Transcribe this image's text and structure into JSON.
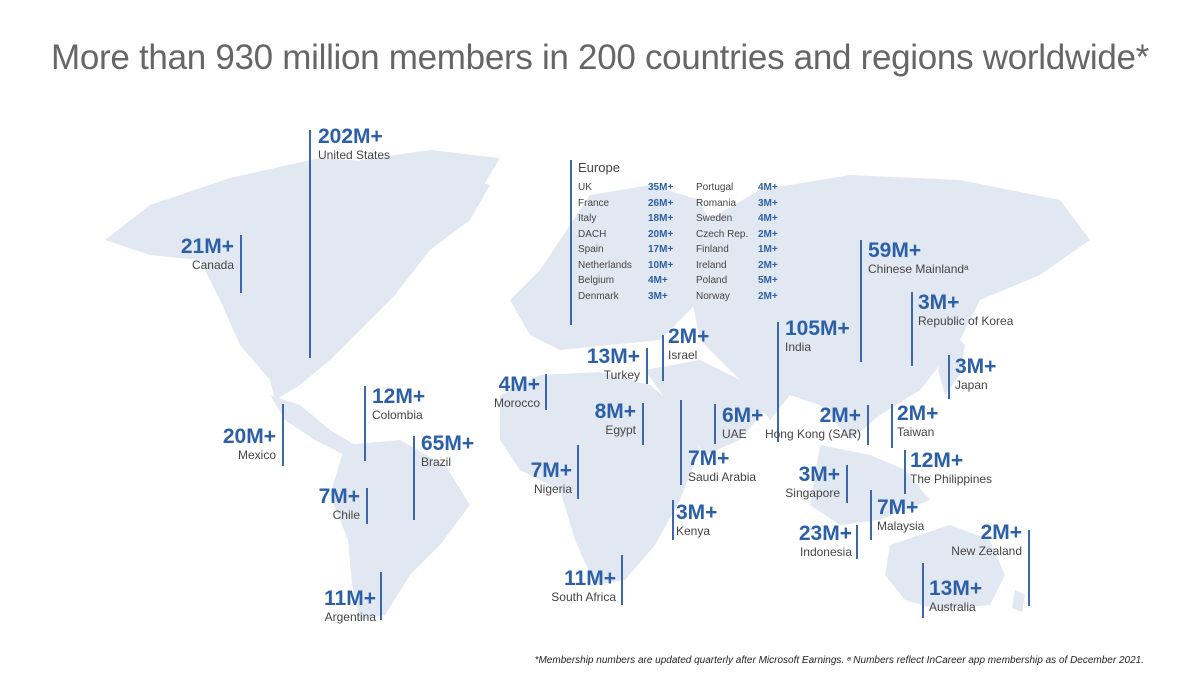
{
  "title": "More than 930 million members in 200 countries and regions worldwide*",
  "colors": {
    "accent": "#2b5fa8",
    "map": "#e2e8f1"
  },
  "stats": {
    "us": {
      "value": "202M+",
      "name": "United States"
    },
    "canada": {
      "value": "21M+",
      "name": "Canada"
    },
    "mexico": {
      "value": "20M+",
      "name": "Mexico"
    },
    "colombia": {
      "value": "12M+",
      "name": "Colombia"
    },
    "brazil": {
      "value": "65M+",
      "name": "Brazil"
    },
    "chile": {
      "value": "7M+",
      "name": "Chile"
    },
    "argentina": {
      "value": "11M+",
      "name": "Argentina"
    },
    "morocco": {
      "value": "4M+",
      "name": "Morocco"
    },
    "turkey": {
      "value": "13M+",
      "name": "Turkey"
    },
    "israel": {
      "value": "2M+",
      "name": "Israel"
    },
    "egypt": {
      "value": "8M+",
      "name": "Egypt"
    },
    "nigeria": {
      "value": "7M+",
      "name": "Nigeria"
    },
    "saudi": {
      "value": "7M+",
      "name": "Saudi Arabia"
    },
    "uae": {
      "value": "6M+",
      "name": "UAE"
    },
    "kenya": {
      "value": "3M+",
      "name": "Kenya"
    },
    "southafrica": {
      "value": "11M+",
      "name": "South Africa"
    },
    "india": {
      "value": "105M+",
      "name": "India"
    },
    "china": {
      "value": "59M+",
      "name": "Chinese Mainlandᵃ"
    },
    "korea": {
      "value": "3M+",
      "name": "Republic of Korea"
    },
    "japan": {
      "value": "3M+",
      "name": "Japan"
    },
    "hongkong": {
      "value": "2M+",
      "name": "Hong Kong (SAR)"
    },
    "taiwan": {
      "value": "2M+",
      "name": "Taiwan"
    },
    "philippines": {
      "value": "12M+",
      "name": "The Philippines"
    },
    "singapore": {
      "value": "3M+",
      "name": "Singapore"
    },
    "malaysia": {
      "value": "7M+",
      "name": "Malaysia"
    },
    "indonesia": {
      "value": "23M+",
      "name": "Indonesia"
    },
    "newzealand": {
      "value": "2M+",
      "name": "New Zealand"
    },
    "australia": {
      "value": "13M+",
      "name": "Australia"
    }
  },
  "europe": {
    "heading": "Europe",
    "rows": [
      {
        "c1": "UK",
        "v1": "35M+",
        "c2": "Portugal",
        "v2": "4M+"
      },
      {
        "c1": "France",
        "v1": "26M+",
        "c2": "Romania",
        "v2": "3M+"
      },
      {
        "c1": "Italy",
        "v1": "18M+",
        "c2": "Sweden",
        "v2": "4M+"
      },
      {
        "c1": "DACH",
        "v1": "20M+",
        "c2": "Czech Rep.",
        "v2": "2M+"
      },
      {
        "c1": "Spain",
        "v1": "17M+",
        "c2": "Finland",
        "v2": "1M+"
      },
      {
        "c1": "Netherlands",
        "v1": "10M+",
        "c2": "Ireland",
        "v2": "2M+"
      },
      {
        "c1": "Belgium",
        "v1": "4M+",
        "c2": "Poland",
        "v2": "5M+"
      },
      {
        "c1": "Denmark",
        "v1": "3M+",
        "c2": "Norway",
        "v2": "2M+"
      }
    ]
  },
  "footnote": "*Membership numbers are updated quarterly after Microsoft Earnings. ᵃ Numbers reflect InCareer app membership as of December 2021."
}
